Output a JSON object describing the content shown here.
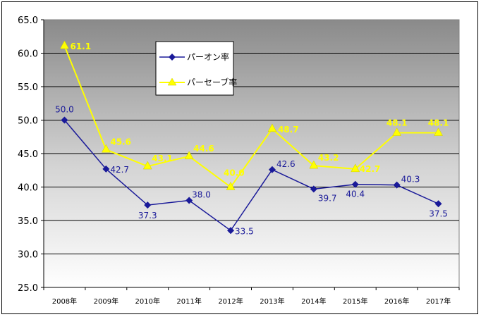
{
  "chart_data": {
    "type": "line",
    "categories": [
      "2008年",
      "2009年",
      "2010年",
      "2011年",
      "2012年",
      "2013年",
      "2014年",
      "2015年",
      "2016年",
      "2017年"
    ],
    "series": [
      {
        "name": "パーオン率",
        "values": [
          50.0,
          42.7,
          37.3,
          38.0,
          33.5,
          42.6,
          39.7,
          40.4,
          40.3,
          37.5
        ],
        "color": "#1a1a99",
        "marker": "diamond"
      },
      {
        "name": "パーセーブ率",
        "values": [
          61.1,
          45.6,
          43.1,
          44.6,
          40.0,
          48.7,
          43.2,
          42.7,
          48.1,
          48.1
        ],
        "color": "#ffff00",
        "marker": "triangle"
      }
    ],
    "ylim": [
      25.0,
      65.0
    ],
    "yticks": [
      "25.0",
      "30.0",
      "35.0",
      "40.0",
      "45.0",
      "50.0",
      "55.0",
      "60.0",
      "65.0"
    ],
    "grid": true,
    "legend_position": "top-center",
    "plot_background": "gradient gray-to-white"
  }
}
